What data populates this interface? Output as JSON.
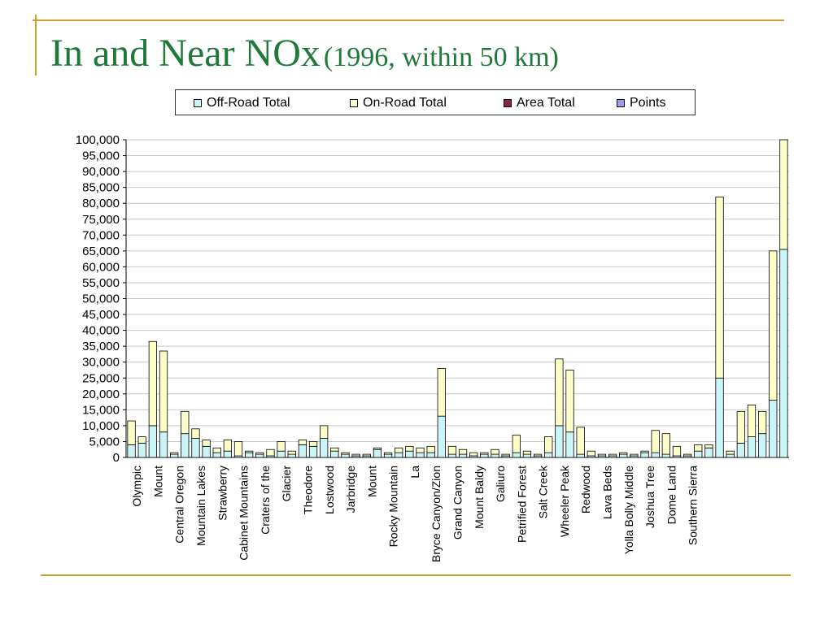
{
  "title": {
    "main": "In and Near NOx",
    "sub": "(1996, within 50 km)"
  },
  "colors": {
    "decor": "#c9a227",
    "title": "#1f7a3a",
    "offroad": "#c9f5f7",
    "onroad": "#fdfdc8",
    "area": "#8b1f4a",
    "points": "#9c9cf0"
  },
  "legend": [
    {
      "label": "Off-Road Total",
      "color": "#c9f5f7"
    },
    {
      "label": "On-Road Total",
      "color": "#fdfdc8"
    },
    {
      "label": "Area Total",
      "color": "#8b1f4a"
    },
    {
      "label": "Points",
      "color": "#9c9cf0"
    }
  ],
  "chart_data": {
    "type": "bar",
    "stacked": true,
    "title": "",
    "xlabel": "",
    "ylabel": "",
    "ylim": [
      0,
      100000
    ],
    "yticks": [
      0,
      5000,
      10000,
      15000,
      20000,
      25000,
      30000,
      35000,
      40000,
      45000,
      50000,
      55000,
      60000,
      65000,
      70000,
      75000,
      80000,
      85000,
      90000,
      95000,
      100000
    ],
    "ytick_labels": [
      "0",
      "5,000",
      "10,000",
      "15,000",
      "20,000",
      "25,000",
      "30,000",
      "35,000",
      "40,000",
      "45,000",
      "50,000",
      "55,000",
      "60,000",
      "65,000",
      "70,000",
      "75,000",
      "80,000",
      "85,000",
      "90,000",
      "95,000",
      "100,000"
    ],
    "grid": true,
    "legend_position": "top",
    "category_count": 62,
    "categories_labeled": [
      {
        "index": 0,
        "label": "Olympic"
      },
      {
        "index": 2,
        "label": "Mount"
      },
      {
        "index": 4,
        "label": "Central Oregon"
      },
      {
        "index": 6,
        "label": "Mountain Lakes"
      },
      {
        "index": 8,
        "label": "Strawberry"
      },
      {
        "index": 10,
        "label": "Cabinet Mountains"
      },
      {
        "index": 12,
        "label": "Craters of the"
      },
      {
        "index": 14,
        "label": "Glacier"
      },
      {
        "index": 16,
        "label": "Theodore"
      },
      {
        "index": 18,
        "label": "Lostwood"
      },
      {
        "index": 20,
        "label": "Jarbridge"
      },
      {
        "index": 22,
        "label": "Mount"
      },
      {
        "index": 24,
        "label": "Rocky Mountain"
      },
      {
        "index": 26,
        "label": "La"
      },
      {
        "index": 28,
        "label": "Bryce Canyon/Zion"
      },
      {
        "index": 30,
        "label": "Grand Canyon"
      },
      {
        "index": 32,
        "label": "Mount Baldy"
      },
      {
        "index": 34,
        "label": "Galiuro"
      },
      {
        "index": 36,
        "label": "Petrified Forest"
      },
      {
        "index": 38,
        "label": "Salt Creek"
      },
      {
        "index": 40,
        "label": "Wheeler Peak"
      },
      {
        "index": 42,
        "label": "Redwood"
      },
      {
        "index": 44,
        "label": "Lava Beds"
      },
      {
        "index": 46,
        "label": "Yolla Bolly Middle"
      },
      {
        "index": 48,
        "label": "Joshua Tree"
      },
      {
        "index": 50,
        "label": "Dome Land"
      },
      {
        "index": 52,
        "label": "Southern Sierra"
      }
    ],
    "series": [
      {
        "name": "Off-Road Total",
        "values": [
          4000,
          4500,
          10000,
          8000,
          1000,
          7500,
          6000,
          3500,
          1500,
          2000,
          500,
          1500,
          1000,
          500,
          2000,
          1000,
          4000,
          3500,
          6000,
          2000,
          1000,
          500,
          500,
          2500,
          1000,
          1500,
          2000,
          1500,
          1500,
          13000,
          1000,
          1000,
          500,
          1000,
          1000,
          500,
          1500,
          1000,
          500,
          1500,
          10000,
          8000,
          1000,
          500,
          500,
          500,
          1000,
          500,
          1500,
          1500,
          1000,
          500,
          500,
          2000,
          3000,
          25000,
          1000,
          4500,
          6500,
          7500,
          18000,
          65500
        ]
      },
      {
        "name": "On-Road Total",
        "values": [
          7500,
          2000,
          26500,
          25500,
          500,
          7000,
          3000,
          2000,
          1500,
          3500,
          4500,
          500,
          500,
          2000,
          3000,
          1000,
          1500,
          1500,
          4000,
          1000,
          500,
          500,
          500,
          500,
          500,
          1500,
          1500,
          1500,
          2000,
          15000,
          2500,
          1500,
          1000,
          500,
          1500,
          500,
          5500,
          1000,
          500,
          5000,
          21000,
          19500,
          8500,
          1500,
          500,
          500,
          500,
          500,
          500,
          7000,
          6500,
          3000,
          500,
          2000,
          1000,
          57000,
          1000,
          10000,
          10000,
          7000,
          47000,
          35000
        ]
      }
    ]
  }
}
